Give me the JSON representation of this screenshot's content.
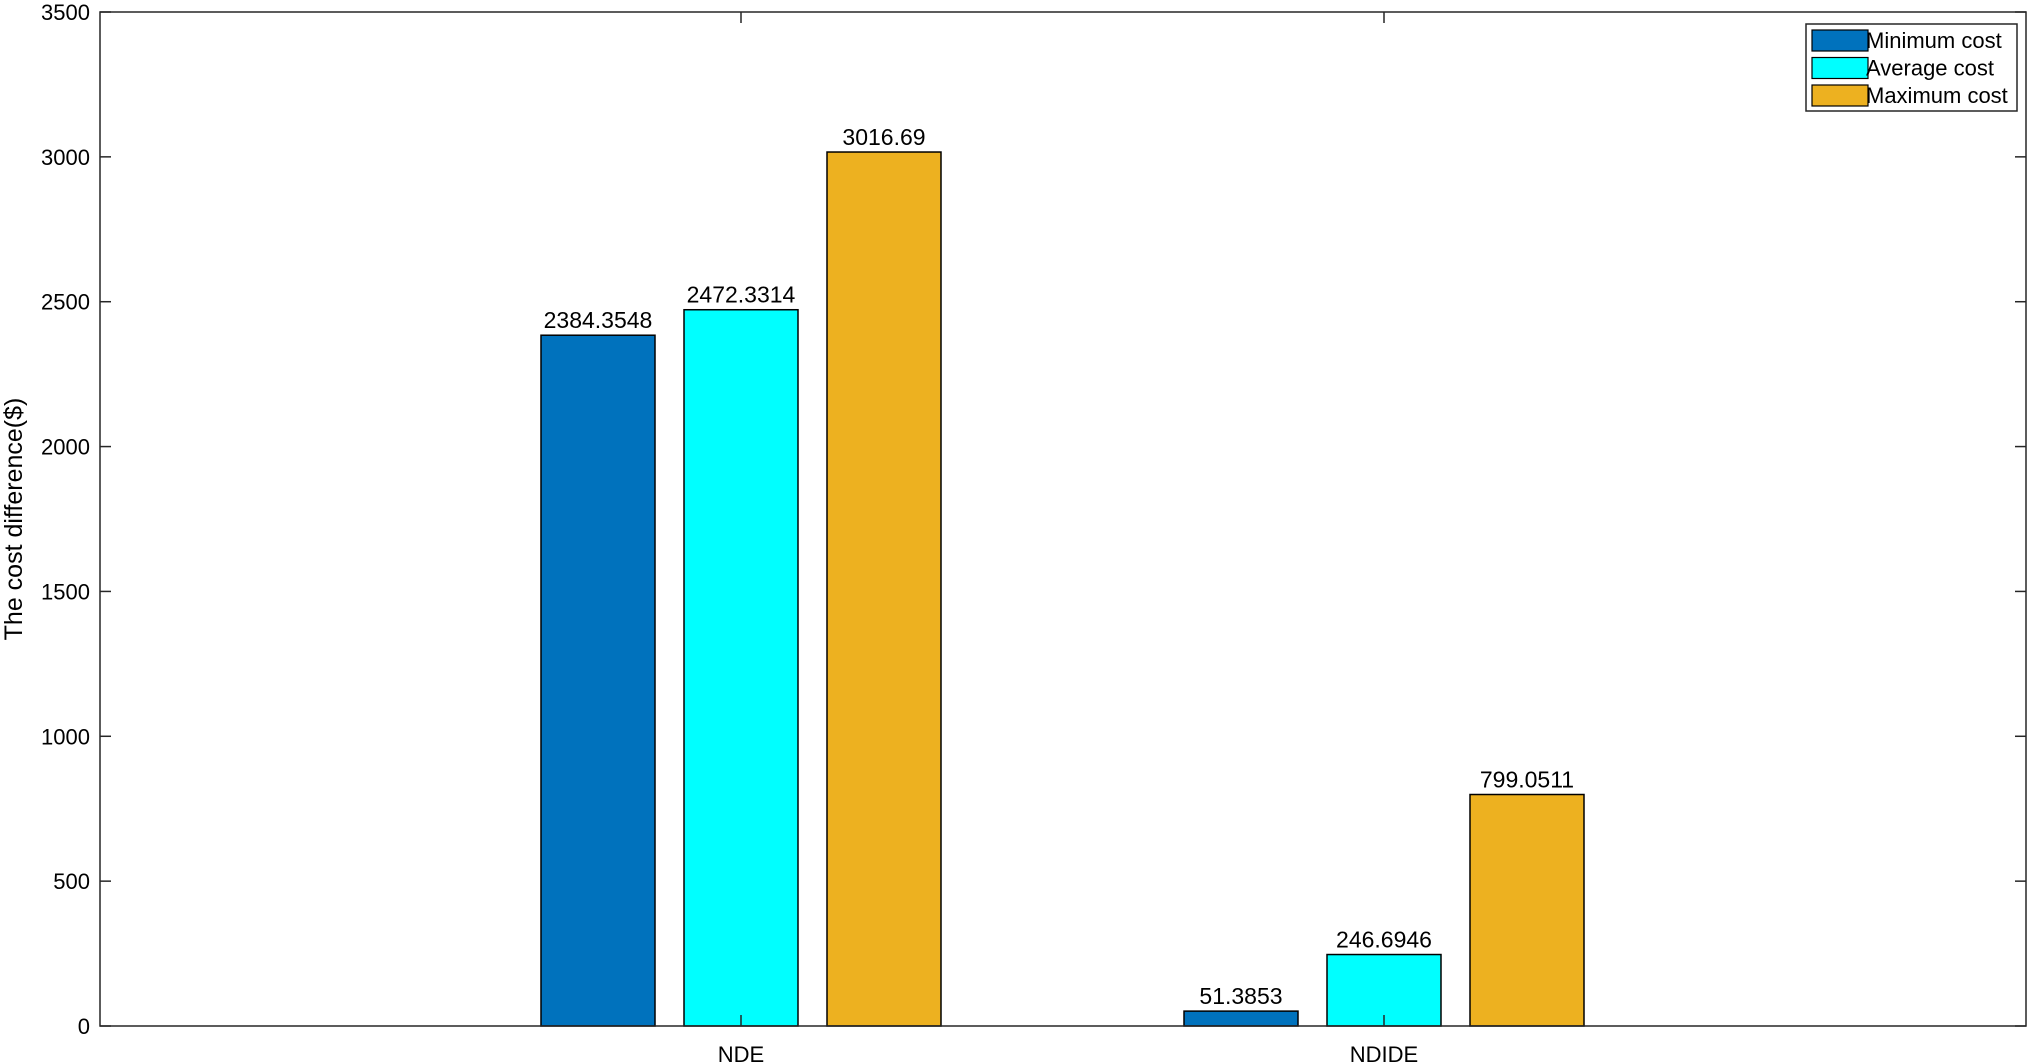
{
  "chart_data": {
    "type": "bar",
    "categories": [
      "NDE",
      "NDIDE"
    ],
    "series": [
      {
        "name": "Minimum cost",
        "values": [
          2384.3548,
          51.3853
        ],
        "labels": [
          "2384.3548",
          "51.3853"
        ],
        "color": "#0072BD"
      },
      {
        "name": "Average cost",
        "values": [
          2472.3314,
          246.6946
        ],
        "labels": [
          "2472.3314",
          "246.6946"
        ],
        "color": "#00FFFF"
      },
      {
        "name": "Maximum cost",
        "values": [
          3016.69,
          799.0511
        ],
        "labels": [
          "3016.69",
          "799.0511"
        ],
        "color": "#EDB120"
      }
    ],
    "title": "",
    "xlabel": "",
    "ylabel": "The cost difference($)",
    "ylim": [
      0,
      3500
    ],
    "yticks": [
      0,
      500,
      1000,
      1500,
      2000,
      2500,
      3000,
      3500
    ],
    "grid": false,
    "legend_position": "top-right"
  }
}
